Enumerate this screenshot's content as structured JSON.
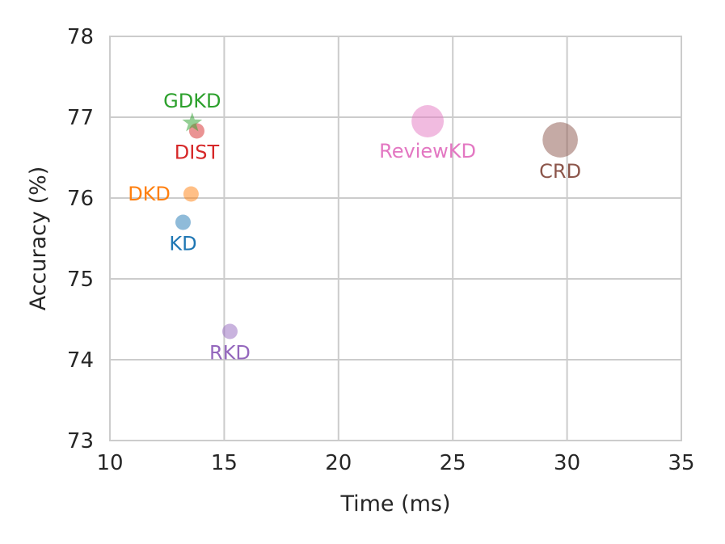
{
  "chart_data": {
    "type": "scatter",
    "title": "",
    "xlabel": "Time (ms)",
    "ylabel": "Accuracy (%)",
    "xlim": [
      10,
      35
    ],
    "ylim": [
      73,
      78
    ],
    "xticks": [
      10,
      15,
      20,
      25,
      30,
      35
    ],
    "yticks": [
      73,
      74,
      75,
      76,
      77,
      78
    ],
    "grid": true,
    "points": [
      {
        "name": "KD",
        "x": 13.2,
        "y": 75.7,
        "size": 1,
        "marker": "circle",
        "color": "#1f77b4",
        "label_position": "below"
      },
      {
        "name": "DKD",
        "x": 13.55,
        "y": 76.05,
        "size": 1,
        "marker": "circle",
        "color": "#ff7f0e",
        "label_position": "left"
      },
      {
        "name": "GDKD",
        "x": 13.6,
        "y": 76.93,
        "size": 1,
        "marker": "star",
        "color": "#2ca02c",
        "label_position": "above"
      },
      {
        "name": "DIST",
        "x": 13.8,
        "y": 76.83,
        "size": 1,
        "marker": "circle",
        "color": "#d62728",
        "label_position": "below"
      },
      {
        "name": "RKD",
        "x": 15.25,
        "y": 74.35,
        "size": 1,
        "marker": "circle",
        "color": "#9467bd",
        "label_position": "below"
      },
      {
        "name": "ReviewKD",
        "x": 23.9,
        "y": 76.95,
        "size": 2.1,
        "marker": "circle",
        "color": "#e377c2",
        "label_position": "below"
      },
      {
        "name": "CRD",
        "x": 29.7,
        "y": 76.72,
        "size": 2.3,
        "marker": "circle",
        "color": "#8c564b",
        "label_position": "below"
      }
    ]
  }
}
